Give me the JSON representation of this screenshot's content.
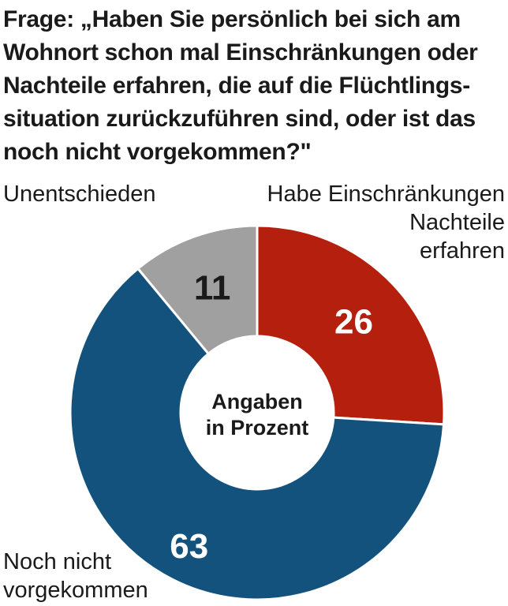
{
  "title_lines": [
    "Frage: „Haben Sie persönlich bei sich am",
    "Wohnort schon mal Einschränkungen oder",
    "Nachteile erfahren, die auf die Flüchtlings-",
    "situation zurückzuführen sind, oder ist das",
    "noch nicht vorgekommen?\""
  ],
  "chart_data": {
    "type": "pie",
    "title": "Frage: „Haben Sie persönlich bei sich am Wohnort schon mal Einschränkungen oder Nachteile erfahren, die auf die Flüchtlingssituation zurückzuführen sind, oder ist das noch nicht vorgekommen?\"",
    "donut": true,
    "center_label_lines": [
      "Angaben",
      "in Prozent"
    ],
    "unit": "Prozent",
    "slices": [
      {
        "label": "Habe Einschränkungen Nachteile erfahren",
        "label_lines": [
          "Habe Einschränkungen",
          "Nachteile",
          "erfahren"
        ],
        "value": 26,
        "color": "#b5200e",
        "value_label_color": "#ffffff"
      },
      {
        "label": "Noch nicht vorgekommen",
        "label_lines": [
          "Noch nicht",
          "vorgekommen"
        ],
        "value": 63,
        "color": "#14527e",
        "value_label_color": "#ffffff"
      },
      {
        "label": "Unentschieden",
        "label_lines": [
          "Unentschieden"
        ],
        "value": 11,
        "color": "#a0a0a0",
        "value_label_color": "#1a1a1a"
      }
    ]
  }
}
